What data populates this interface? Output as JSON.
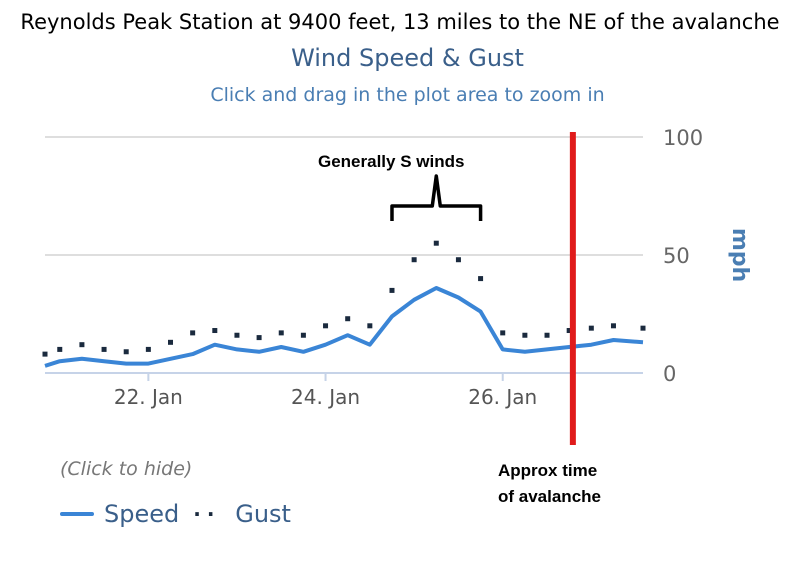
{
  "heading": "Reynolds Peak Station at 9400 feet, 13 miles to the NE of the avalanche",
  "chart_data": {
    "type": "line",
    "title": "Wind Speed & Gust",
    "subtitle": "Click and drag in the plot area to zoom in",
    "ylabel": "mph",
    "ylim": [
      0,
      100
    ],
    "yticks": [
      0,
      50,
      100
    ],
    "xlim": [
      "2024-01-20T20:00",
      "2024-01-27T14:00"
    ],
    "xticks": [
      "22. Jan",
      "24. Jan",
      "26. Jan"
    ],
    "xtick_dates": [
      "2024-01-22",
      "2024-01-24",
      "2024-01-26"
    ],
    "grid": "horizontal",
    "legend_position": "bottom-left",
    "legend_hint": "(Click to hide)",
    "series": [
      {
        "name": "Speed",
        "style": "line",
        "color": "#3a85d6",
        "x": [
          "2024-01-20T20:00",
          "2024-01-21T00:00",
          "2024-01-21T06:00",
          "2024-01-21T12:00",
          "2024-01-21T18:00",
          "2024-01-22T00:00",
          "2024-01-22T06:00",
          "2024-01-22T12:00",
          "2024-01-22T18:00",
          "2024-01-23T00:00",
          "2024-01-23T06:00",
          "2024-01-23T12:00",
          "2024-01-23T18:00",
          "2024-01-24T00:00",
          "2024-01-24T06:00",
          "2024-01-24T12:00",
          "2024-01-24T18:00",
          "2024-01-25T00:00",
          "2024-01-25T06:00",
          "2024-01-25T12:00",
          "2024-01-25T18:00",
          "2024-01-26T00:00",
          "2024-01-26T06:00",
          "2024-01-26T12:00",
          "2024-01-26T18:00",
          "2024-01-27T00:00",
          "2024-01-27T06:00",
          "2024-01-27T14:00"
        ],
        "values": [
          3,
          5,
          6,
          5,
          4,
          4,
          6,
          8,
          12,
          10,
          9,
          11,
          9,
          12,
          16,
          12,
          24,
          31,
          36,
          32,
          26,
          10,
          9,
          10,
          11,
          12,
          14,
          13
        ]
      },
      {
        "name": "Gust",
        "style": "dots",
        "color": "#1a2a3e",
        "x": [
          "2024-01-20T20:00",
          "2024-01-21T00:00",
          "2024-01-21T06:00",
          "2024-01-21T12:00",
          "2024-01-21T18:00",
          "2024-01-22T00:00",
          "2024-01-22T06:00",
          "2024-01-22T12:00",
          "2024-01-22T18:00",
          "2024-01-23T00:00",
          "2024-01-23T06:00",
          "2024-01-23T12:00",
          "2024-01-23T18:00",
          "2024-01-24T00:00",
          "2024-01-24T06:00",
          "2024-01-24T12:00",
          "2024-01-24T18:00",
          "2024-01-25T00:00",
          "2024-01-25T06:00",
          "2024-01-25T12:00",
          "2024-01-25T18:00",
          "2024-01-26T00:00",
          "2024-01-26T06:00",
          "2024-01-26T12:00",
          "2024-01-26T18:00",
          "2024-01-27T00:00",
          "2024-01-27T06:00",
          "2024-01-27T14:00"
        ],
        "values": [
          8,
          10,
          12,
          10,
          9,
          10,
          13,
          17,
          18,
          16,
          15,
          17,
          16,
          20,
          23,
          20,
          35,
          48,
          55,
          48,
          40,
          17,
          16,
          16,
          18,
          19,
          20,
          19
        ]
      }
    ],
    "annotations": [
      {
        "text": "Generally S winds",
        "from": "2024-01-24T18:00",
        "to": "2024-01-25T18:00"
      },
      {
        "text": "Approx time of avalanche",
        "lines": [
          "Approx time",
          "of avalanche"
        ],
        "x": "2024-01-26T19:00",
        "color": "#e01b1b"
      }
    ]
  }
}
